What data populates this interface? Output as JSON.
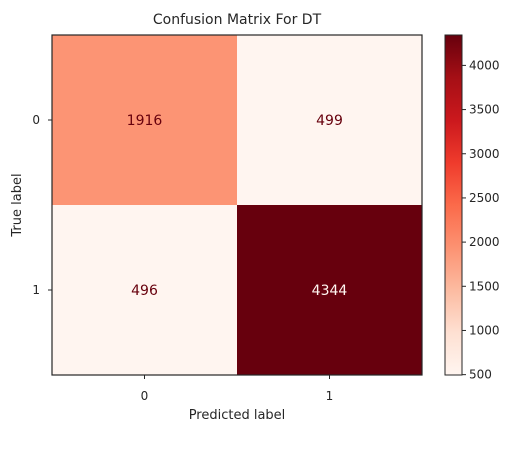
{
  "chart_data": {
    "type": "heatmap",
    "title": "Confusion Matrix For DT",
    "xlabel": "Predicted label",
    "ylabel": "True label",
    "x_categories": [
      "0",
      "1"
    ],
    "y_categories": [
      "0",
      "1"
    ],
    "values": [
      [
        1916,
        499
      ],
      [
        496,
        4344
      ]
    ],
    "colormap": "Reds",
    "colorbar": {
      "range": [
        496,
        4344
      ],
      "ticks": [
        "500",
        "1000",
        "1500",
        "2000",
        "2500",
        "3000",
        "3500",
        "4000"
      ]
    },
    "grid": false,
    "colors": {
      "low": "#fff5f0",
      "mid": "#fb6a4a",
      "high": "#67000d",
      "text_dark": "#67000d",
      "text_light": "#fff5f0"
    }
  }
}
